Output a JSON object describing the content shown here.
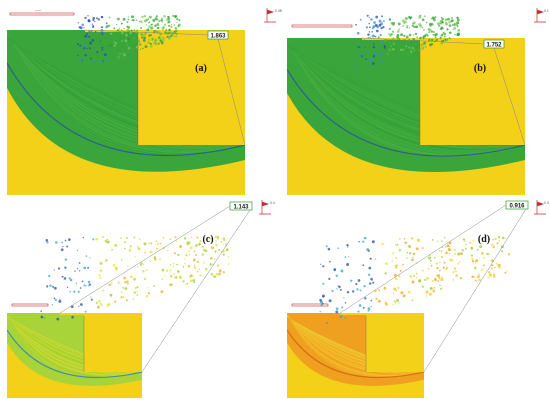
{
  "panels": [
    {
      "id": "a",
      "label": "(a)",
      "fos": "1.863",
      "legend_value": "0.08",
      "palette": [
        "#2e9a35",
        "#3aa53a",
        "#54b848",
        "#7cc85a",
        "#3a8fc8",
        "#2a4fa8"
      ],
      "slice_color": "#3aa53a",
      "base_color": "#f2d118",
      "dark_rim": "#2a4fa8",
      "style": "green"
    },
    {
      "id": "b",
      "label": "(b)",
      "fos": "1.752",
      "legend_value": "0.1",
      "palette": [
        "#2e9a35",
        "#3aa53a",
        "#54b848",
        "#7cc85a",
        "#3a8fc8",
        "#2a4fa8"
      ],
      "slice_color": "#3aa53a",
      "base_color": "#f2d118",
      "dark_rim": "#2a4fa8",
      "style": "green"
    },
    {
      "id": "c",
      "label": "(c)",
      "fos": "1.143",
      "legend_value": "0.4",
      "palette": [
        "#9acd32",
        "#c6d82a",
        "#e8e03a",
        "#f0b030",
        "#39a6c8",
        "#2a4fa8"
      ],
      "slice_color": "#a8d43a",
      "base_color": "#f2d118",
      "dark_rim": "#2a7fb8",
      "style": "mixed"
    },
    {
      "id": "d",
      "label": "(d)",
      "fos": "0.916",
      "legend_value": "0.4",
      "palette": [
        "#f0a020",
        "#f6c02a",
        "#e8e03a",
        "#9acd32",
        "#39a6c8",
        "#2a4fa8"
      ],
      "slice_color": "#f0a020",
      "base_color": "#f2d118",
      "dark_rim": "#d06010",
      "style": "orange"
    }
  ]
}
